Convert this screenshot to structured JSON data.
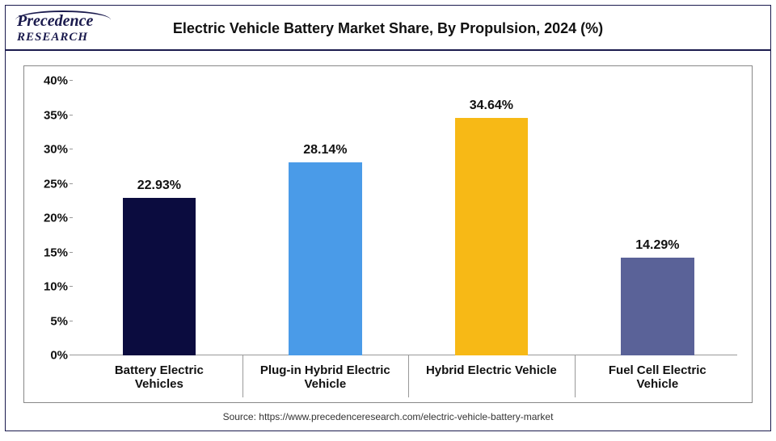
{
  "header": {
    "logo_top": "Precedence",
    "logo_bottom": "RESEARCH",
    "title": "Electric Vehicle Battery Market Share, By Propulsion, 2024 (%)",
    "title_fontsize": 18
  },
  "chart": {
    "type": "bar",
    "background_color": "#ffffff",
    "border_color": "#888888",
    "ylim": [
      0,
      40
    ],
    "ytick_step": 5,
    "y_suffix": "%",
    "tick_fontsize": 15,
    "value_fontsize": 16,
    "xlabel_fontsize": 15,
    "bar_width_pct": 11,
    "bars": [
      {
        "label": "Battery Electric\nVehicles",
        "value": 22.93,
        "value_label": "22.93%",
        "color": "#0b0c3f",
        "center_pct": 13
      },
      {
        "label": "Plug-in Hybrid Electric\nVehicle",
        "value": 28.14,
        "value_label": "28.14%",
        "color": "#4a9be8",
        "center_pct": 38
      },
      {
        "label": "Hybrid Electric Vehicle",
        "value": 34.64,
        "value_label": "34.64%",
        "color": "#f7b916",
        "center_pct": 63
      },
      {
        "label": "Fuel Cell Electric\nVehicle",
        "value": 14.29,
        "value_label": "14.29%",
        "color": "#5a6298",
        "center_pct": 88
      }
    ],
    "x_separators_pct": [
      25.5,
      50.5,
      75.5
    ]
  },
  "source": {
    "text": "Source: https://www.precedenceresearch.com/electric-vehicle-battery-market",
    "fontsize": 12
  }
}
